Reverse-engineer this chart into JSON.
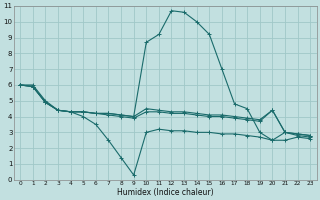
{
  "xlabel": "Humidex (Indice chaleur)",
  "bg_color": "#c2e0e0",
  "grid_color": "#a0c8c8",
  "line_color": "#1a6b6b",
  "xlim": [
    -0.5,
    23.5
  ],
  "ylim": [
    0,
    11
  ],
  "xticks": [
    0,
    1,
    2,
    3,
    4,
    5,
    6,
    7,
    8,
    9,
    10,
    11,
    12,
    13,
    14,
    15,
    16,
    17,
    18,
    19,
    20,
    21,
    22,
    23
  ],
  "yticks": [
    0,
    1,
    2,
    3,
    4,
    5,
    6,
    7,
    8,
    9,
    10,
    11
  ],
  "series": [
    {
      "x": [
        0,
        1,
        2,
        3,
        4,
        5,
        6,
        7,
        8,
        9,
        10,
        11,
        12,
        13,
        14,
        15,
        16,
        17,
        18,
        19,
        20,
        21,
        22,
        23
      ],
      "y": [
        6.0,
        6.0,
        5.0,
        4.4,
        4.3,
        4.0,
        3.5,
        2.5,
        1.4,
        0.3,
        3.0,
        3.2,
        3.1,
        3.1,
        3.0,
        3.0,
        2.9,
        2.9,
        2.8,
        2.7,
        2.5,
        2.5,
        2.7,
        2.6
      ]
    },
    {
      "x": [
        0,
        1,
        2,
        3,
        4,
        5,
        6,
        7,
        8,
        9,
        10,
        11,
        12,
        13,
        14,
        15,
        16,
        17,
        18,
        19,
        20,
        21,
        22,
        23
      ],
      "y": [
        6.0,
        5.9,
        4.9,
        4.4,
        4.3,
        4.3,
        4.2,
        4.2,
        4.1,
        4.0,
        4.5,
        4.4,
        4.3,
        4.3,
        4.2,
        4.1,
        4.1,
        4.0,
        3.9,
        3.8,
        4.4,
        3.0,
        2.9,
        2.8
      ]
    },
    {
      "x": [
        0,
        1,
        2,
        3,
        4,
        5,
        6,
        7,
        8,
        9,
        10,
        11,
        12,
        13,
        14,
        15,
        16,
        17,
        18,
        19,
        20,
        21,
        22,
        23
      ],
      "y": [
        6.0,
        5.9,
        4.9,
        4.4,
        4.3,
        4.3,
        4.2,
        4.2,
        4.1,
        4.0,
        8.7,
        9.2,
        10.7,
        10.6,
        10.0,
        9.2,
        7.0,
        4.8,
        4.5,
        3.0,
        2.5,
        3.0,
        2.8,
        2.7
      ]
    },
    {
      "x": [
        0,
        1,
        2,
        3,
        4,
        5,
        6,
        7,
        8,
        9,
        10,
        11,
        12,
        13,
        14,
        15,
        16,
        17,
        18,
        19,
        20,
        21,
        22,
        23
      ],
      "y": [
        6.0,
        5.9,
        4.9,
        4.4,
        4.3,
        4.3,
        4.2,
        4.1,
        4.0,
        3.9,
        4.3,
        4.3,
        4.2,
        4.2,
        4.1,
        4.0,
        4.0,
        3.9,
        3.8,
        3.7,
        4.4,
        3.0,
        2.9,
        2.8
      ]
    }
  ]
}
